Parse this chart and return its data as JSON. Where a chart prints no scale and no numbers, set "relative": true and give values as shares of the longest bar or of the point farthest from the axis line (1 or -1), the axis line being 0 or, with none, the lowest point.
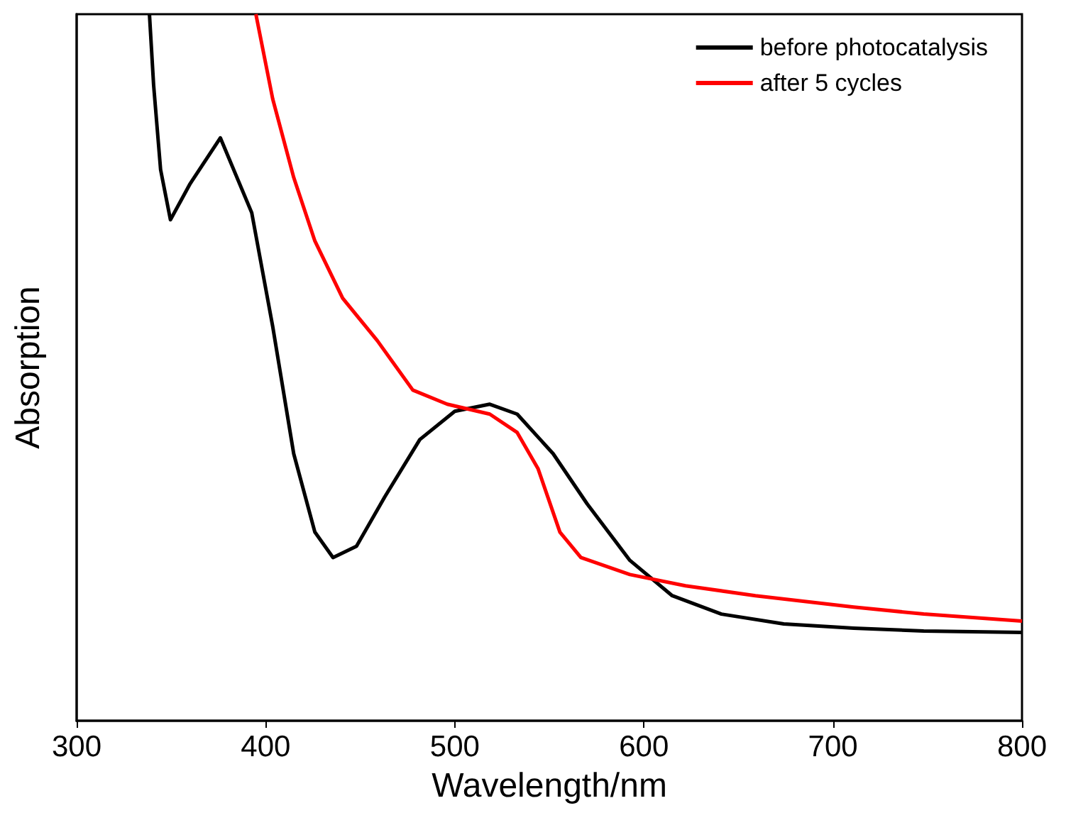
{
  "chart_data": {
    "type": "line",
    "xlabel": "Wavelength/nm",
    "ylabel": "Absorption",
    "relative": true,
    "xlim": [
      300,
      800
    ],
    "xticks": [
      300,
      400,
      500,
      600,
      700,
      800
    ],
    "tick_labels": "x",
    "legend": "top right",
    "marker": "none",
    "line_style": "solid",
    "grid": false,
    "series": [
      {
        "name": "before photocatalysis",
        "color": "#000000",
        "x": [
          338.5,
          340.7,
          344.4,
          349.6,
          360,
          376,
          392.6,
          403.7,
          414.8,
          426,
          435.6,
          448,
          463,
          481.5,
          500,
          518.5,
          533,
          552,
          570,
          592.6,
          615,
          641,
          674,
          711,
          748,
          800
        ],
        "values": [
          1,
          0.9,
          0.78,
          0.709,
          0.76,
          0.825,
          0.719,
          0.558,
          0.378,
          0.267,
          0.231,
          0.247,
          0.317,
          0.398,
          0.438,
          0.448,
          0.434,
          0.378,
          0.307,
          0.227,
          0.177,
          0.151,
          0.137,
          0.131,
          0.127,
          0.125
        ]
      },
      {
        "name": "after 5 cycles",
        "color": "#ff0000",
        "x": [
          394.8,
          403.7,
          414.8,
          426,
          440.7,
          459,
          477.8,
          496,
          518.5,
          533,
          544,
          555.6,
          566.7,
          592.6,
          622,
          659,
          711,
          748,
          800
        ],
        "values": [
          1,
          0.88,
          0.769,
          0.679,
          0.598,
          0.538,
          0.468,
          0.448,
          0.434,
          0.408,
          0.357,
          0.267,
          0.231,
          0.207,
          0.191,
          0.177,
          0.161,
          0.151,
          0.141
        ]
      }
    ]
  }
}
